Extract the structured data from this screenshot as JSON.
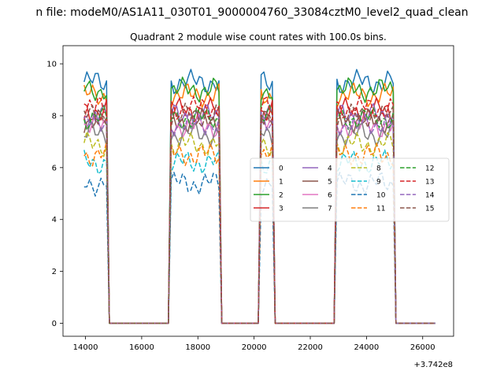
{
  "figure": {
    "suptitle": "n file: modeM0/AS1A11_030T01_9000004760_33084cztM0_level2_quad_clean",
    "title": "Quadrant 2 module wise count rates with 100.0s bins.",
    "offset_label": "+3.742e8"
  },
  "chart_data": {
    "type": "line",
    "title": "Quadrant 2 module wise count rates with 100.0s bins.",
    "xlabel": "",
    "ylabel": "",
    "x_offset": 374200000,
    "xlim": [
      13200,
      27100
    ],
    "ylim": [
      -0.5,
      10.7
    ],
    "xticks": [
      14000,
      16000,
      18000,
      20000,
      22000,
      24000,
      26000
    ],
    "yticks": [
      0,
      2,
      4,
      6,
      8,
      10
    ],
    "grid": false,
    "legend": {
      "placement": "center-right",
      "columns": 4
    },
    "on_intervals": [
      [
        13950,
        14750
      ],
      [
        17000,
        18800
      ],
      [
        20200,
        20650
      ],
      [
        22900,
        25000
      ]
    ],
    "series": [
      {
        "name": "0",
        "color": "#1f77b4",
        "dash": "solid",
        "level": 9.3
      },
      {
        "name": "1",
        "color": "#ff7f0e",
        "dash": "solid",
        "level": 8.8
      },
      {
        "name": "2",
        "color": "#2ca02c",
        "dash": "solid",
        "level": 9.0
      },
      {
        "name": "3",
        "color": "#d62728",
        "dash": "solid",
        "level": 8.2
      },
      {
        "name": "4",
        "color": "#9467bd",
        "dash": "solid",
        "level": 8.0
      },
      {
        "name": "5",
        "color": "#8c564b",
        "dash": "solid",
        "level": 7.8
      },
      {
        "name": "6",
        "color": "#e377c2",
        "dash": "solid",
        "level": 7.6
      },
      {
        "name": "7",
        "color": "#7f7f7f",
        "dash": "solid",
        "level": 7.3
      },
      {
        "name": "8",
        "color": "#bcbd22",
        "dash": "dashed",
        "level": 6.9
      },
      {
        "name": "9",
        "color": "#17becf",
        "dash": "dashed",
        "level": 6.2
      },
      {
        "name": "10",
        "color": "#1f77b4",
        "dash": "dashed",
        "level": 5.4
      },
      {
        "name": "11",
        "color": "#ff7f0e",
        "dash": "dashed",
        "level": 6.5
      },
      {
        "name": "12",
        "color": "#2ca02c",
        "dash": "dashed",
        "level": 7.9
      },
      {
        "name": "13",
        "color": "#d62728",
        "dash": "dashed",
        "level": 8.3
      },
      {
        "name": "14",
        "color": "#9467bd",
        "dash": "dashed",
        "level": 7.7
      },
      {
        "name": "15",
        "color": "#8c564b",
        "dash": "dashed",
        "level": 8.0
      }
    ]
  }
}
